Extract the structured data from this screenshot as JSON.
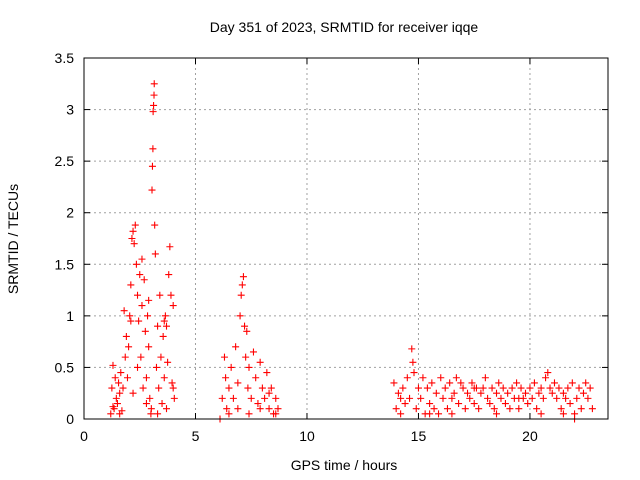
{
  "chart_data": {
    "type": "scatter",
    "title": "Day 351 of 2023, SRMTID for receiver iqqe",
    "xlabel": "GPS time / hours",
    "ylabel": "SRMTID / TECUs",
    "xlim": [
      0,
      23.5
    ],
    "ylim": [
      0,
      3.5
    ],
    "grid": true,
    "marker": "+",
    "color": "#ff0000",
    "x_ticks": [
      0,
      5,
      10,
      15,
      20
    ],
    "x_tick_labels": [
      "0",
      "5",
      "10",
      "15",
      "20"
    ],
    "y_ticks": [
      0,
      0.5,
      1,
      1.5,
      2,
      2.5,
      3,
      3.5
    ],
    "y_tick_labels": [
      "0",
      "0.5",
      "1",
      "1.5",
      "2",
      "2.5",
      "3",
      "3.5"
    ],
    "series": [
      {
        "name": "SRMTID",
        "points": [
          [
            1.2,
            0.05
          ],
          [
            1.25,
            0.3
          ],
          [
            1.3,
            0.52
          ],
          [
            1.35,
            0.1
          ],
          [
            1.4,
            0.4
          ],
          [
            1.45,
            0.2
          ],
          [
            1.5,
            0.15
          ],
          [
            1.55,
            0.35
          ],
          [
            1.6,
            0.25
          ],
          [
            1.65,
            0.45
          ],
          [
            1.7,
            0.08
          ],
          [
            1.75,
            0.3
          ],
          [
            1.8,
            1.05
          ],
          [
            1.85,
            0.6
          ],
          [
            1.9,
            0.8
          ],
          [
            1.95,
            0.4
          ],
          [
            2.0,
            0.7
          ],
          [
            2.05,
            1.0
          ],
          [
            2.1,
            1.3
          ],
          [
            2.15,
            1.75
          ],
          [
            2.2,
            1.82
          ],
          [
            2.25,
            1.7
          ],
          [
            2.3,
            1.88
          ],
          [
            2.35,
            1.5
          ],
          [
            2.4,
            1.2
          ],
          [
            2.45,
            0.95
          ],
          [
            2.5,
            1.4
          ],
          [
            2.55,
            0.6
          ],
          [
            2.6,
            1.1
          ],
          [
            2.65,
            0.3
          ],
          [
            2.7,
            1.35
          ],
          [
            2.75,
            0.85
          ],
          [
            2.8,
            0.4
          ],
          [
            2.85,
            1.0
          ],
          [
            2.9,
            0.7
          ],
          [
            2.95,
            0.2
          ],
          [
            3.0,
            0.05
          ],
          [
            3.02,
            0.1
          ],
          [
            3.05,
            2.22
          ],
          [
            3.07,
            2.45
          ],
          [
            3.09,
            2.62
          ],
          [
            3.1,
            2.98
          ],
          [
            3.12,
            3.04
          ],
          [
            3.14,
            3.14
          ],
          [
            3.15,
            3.25
          ],
          [
            3.17,
            1.88
          ],
          [
            3.2,
            1.6
          ],
          [
            3.25,
            0.5
          ],
          [
            3.3,
            0.9
          ],
          [
            3.35,
            0.3
          ],
          [
            3.4,
            1.2
          ],
          [
            3.45,
            0.6
          ],
          [
            3.5,
            0.15
          ],
          [
            3.55,
            0.8
          ],
          [
            3.6,
            0.4
          ],
          [
            3.65,
            1.0
          ],
          [
            3.7,
            0.9
          ],
          [
            3.75,
            0.55
          ],
          [
            3.8,
            1.4
          ],
          [
            3.85,
            1.67
          ],
          [
            3.9,
            1.2
          ],
          [
            3.95,
            0.35
          ],
          [
            4.0,
            1.1
          ],
          [
            4.05,
            0.2
          ],
          [
            1.3,
            0.12
          ],
          [
            1.6,
            0.05
          ],
          [
            2.2,
            0.25
          ],
          [
            2.4,
            0.5
          ],
          [
            2.8,
            0.15
          ],
          [
            3.3,
            0.05
          ],
          [
            3.7,
            0.1
          ],
          [
            4.0,
            0.3
          ],
          [
            2.1,
            0.95
          ],
          [
            2.6,
            1.55
          ],
          [
            2.9,
            1.15
          ],
          [
            3.6,
            0.95
          ],
          [
            6.1,
            0.0
          ],
          [
            6.2,
            0.2
          ],
          [
            6.3,
            0.6
          ],
          [
            6.35,
            0.4
          ],
          [
            6.4,
            0.1
          ],
          [
            6.5,
            0.3
          ],
          [
            6.6,
            0.5
          ],
          [
            6.7,
            0.2
          ],
          [
            6.8,
            0.7
          ],
          [
            6.9,
            0.35
          ],
          [
            7.0,
            1.0
          ],
          [
            7.05,
            1.2
          ],
          [
            7.1,
            1.3
          ],
          [
            7.15,
            1.38
          ],
          [
            7.2,
            0.9
          ],
          [
            7.25,
            0.6
          ],
          [
            7.3,
            0.85
          ],
          [
            7.35,
            0.3
          ],
          [
            7.4,
            0.5
          ],
          [
            7.5,
            0.2
          ],
          [
            7.6,
            0.65
          ],
          [
            7.7,
            0.4
          ],
          [
            7.8,
            0.15
          ],
          [
            7.9,
            0.55
          ],
          [
            8.0,
            0.3
          ],
          [
            8.1,
            0.2
          ],
          [
            8.2,
            0.45
          ],
          [
            8.3,
            0.1
          ],
          [
            8.4,
            0.3
          ],
          [
            8.5,
            0.05
          ],
          [
            8.6,
            0.2
          ],
          [
            8.7,
            0.1
          ],
          [
            6.5,
            0.05
          ],
          [
            6.9,
            0.1
          ],
          [
            7.4,
            0.05
          ],
          [
            7.9,
            0.1
          ],
          [
            8.3,
            0.25
          ],
          [
            8.6,
            0.05
          ],
          [
            13.9,
            0.35
          ],
          [
            14.0,
            0.1
          ],
          [
            14.1,
            0.25
          ],
          [
            14.2,
            0.05
          ],
          [
            14.3,
            0.3
          ],
          [
            14.4,
            0.15
          ],
          [
            14.5,
            0.4
          ],
          [
            14.6,
            0.2
          ],
          [
            14.7,
            0.68
          ],
          [
            14.75,
            0.55
          ],
          [
            14.8,
            0.45
          ],
          [
            14.9,
            0.1
          ],
          [
            15.0,
            0.3
          ],
          [
            15.1,
            0.2
          ],
          [
            15.2,
            0.4
          ],
          [
            15.3,
            0.05
          ],
          [
            15.4,
            0.3
          ],
          [
            15.5,
            0.15
          ],
          [
            15.6,
            0.35
          ],
          [
            15.7,
            0.1
          ],
          [
            15.8,
            0.25
          ],
          [
            15.9,
            0.05
          ],
          [
            16.0,
            0.4
          ],
          [
            16.1,
            0.2
          ],
          [
            16.2,
            0.3
          ],
          [
            16.3,
            0.1
          ],
          [
            16.4,
            0.35
          ],
          [
            16.5,
            0.2
          ],
          [
            16.6,
            0.25
          ],
          [
            16.7,
            0.4
          ],
          [
            16.8,
            0.15
          ],
          [
            16.9,
            0.35
          ],
          [
            17.0,
            0.3
          ],
          [
            17.1,
            0.1
          ],
          [
            17.2,
            0.25
          ],
          [
            17.3,
            0.2
          ],
          [
            17.4,
            0.35
          ],
          [
            17.5,
            0.15
          ],
          [
            17.6,
            0.3
          ],
          [
            17.7,
            0.1
          ],
          [
            17.8,
            0.25
          ],
          [
            17.9,
            0.3
          ],
          [
            18.0,
            0.4
          ],
          [
            18.1,
            0.2
          ],
          [
            18.2,
            0.15
          ],
          [
            18.3,
            0.3
          ],
          [
            18.4,
            0.1
          ],
          [
            18.5,
            0.25
          ],
          [
            18.6,
            0.35
          ],
          [
            18.7,
            0.2
          ],
          [
            18.8,
            0.3
          ],
          [
            18.9,
            0.15
          ],
          [
            19.0,
            0.25
          ],
          [
            19.1,
            0.1
          ],
          [
            19.2,
            0.3
          ],
          [
            19.3,
            0.2
          ],
          [
            19.4,
            0.35
          ],
          [
            19.5,
            0.1
          ],
          [
            19.6,
            0.3
          ],
          [
            19.7,
            0.2
          ],
          [
            19.8,
            0.25
          ],
          [
            19.9,
            0.15
          ],
          [
            20.0,
            0.3
          ],
          [
            20.1,
            0.2
          ],
          [
            20.2,
            0.35
          ],
          [
            20.3,
            0.1
          ],
          [
            20.4,
            0.25
          ],
          [
            20.5,
            0.3
          ],
          [
            20.6,
            0.2
          ],
          [
            20.7,
            0.4
          ],
          [
            20.8,
            0.45
          ],
          [
            20.9,
            0.3
          ],
          [
            21.0,
            0.25
          ],
          [
            21.1,
            0.35
          ],
          [
            21.2,
            0.2
          ],
          [
            21.3,
            0.3
          ],
          [
            21.4,
            0.1
          ],
          [
            21.5,
            0.25
          ],
          [
            21.6,
            0.2
          ],
          [
            21.7,
            0.3
          ],
          [
            21.8,
            0.15
          ],
          [
            21.9,
            0.35
          ],
          [
            22.0,
            0.05
          ],
          [
            22.1,
            0.2
          ],
          [
            22.2,
            0.3
          ],
          [
            22.3,
            0.1
          ],
          [
            22.4,
            0.25
          ],
          [
            22.5,
            0.35
          ],
          [
            22.6,
            0.2
          ],
          [
            22.7,
            0.3
          ],
          [
            22.8,
            0.1
          ],
          [
            14.2,
            0.2
          ],
          [
            15.5,
            0.05
          ],
          [
            16.5,
            0.05
          ],
          [
            17.5,
            0.3
          ],
          [
            18.5,
            0.05
          ],
          [
            19.5,
            0.2
          ],
          [
            20.5,
            0.05
          ],
          [
            21.5,
            0.05
          ],
          [
            22.0,
            0.0
          ]
        ]
      }
    ]
  }
}
